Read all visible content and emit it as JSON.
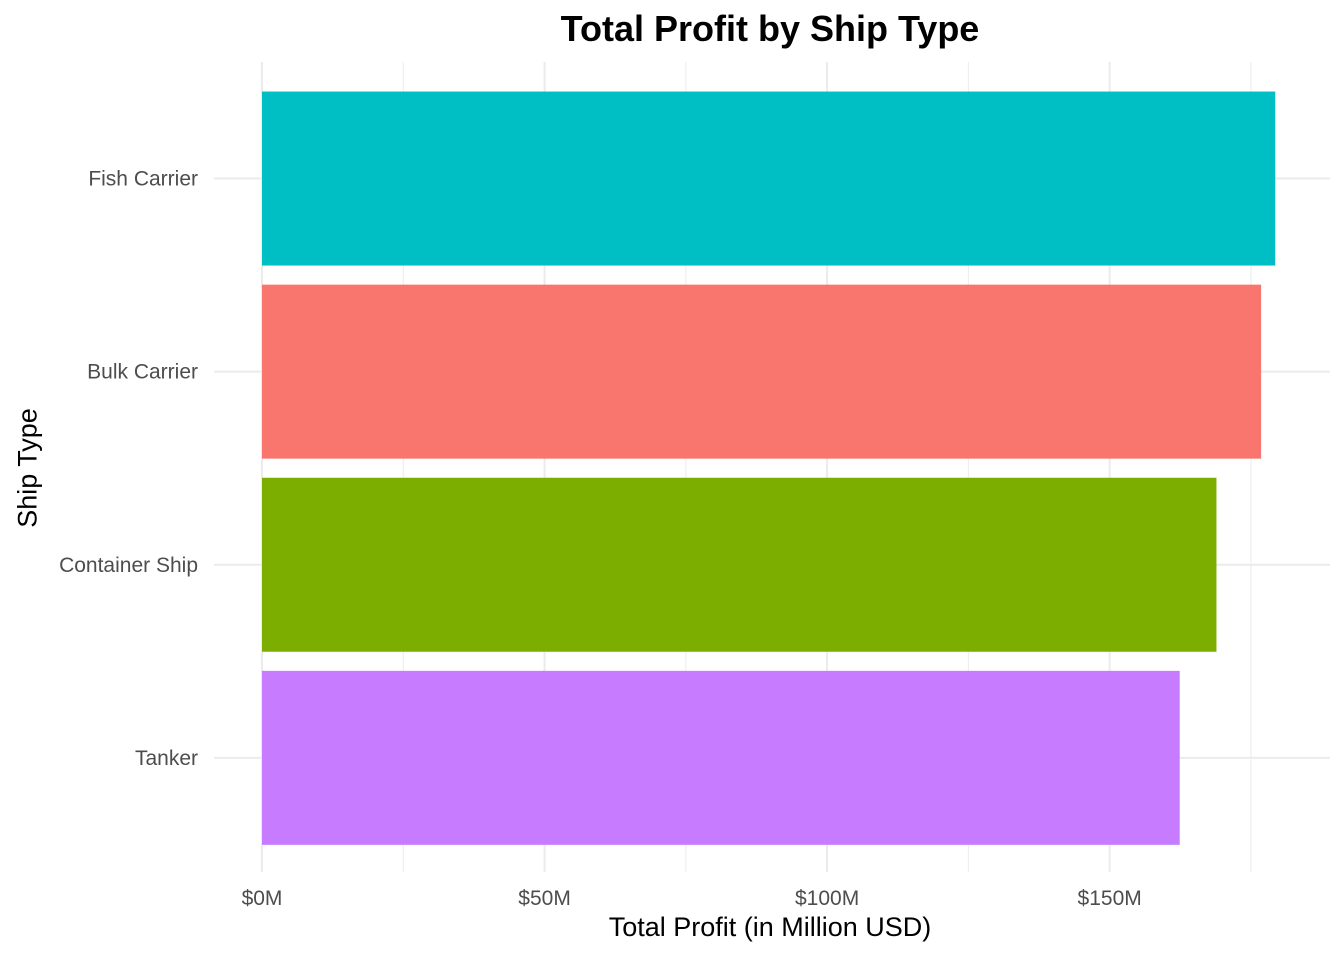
{
  "chart_data": {
    "type": "bar",
    "orientation": "horizontal",
    "title": "Total Profit by Ship Type",
    "xlabel": "Total Profit (in Million USD)",
    "ylabel": "Ship Type",
    "categories": [
      "Fish Carrier",
      "Bulk Carrier",
      "Container Ship",
      "Tanker"
    ],
    "values": [
      179.3,
      176.8,
      168.9,
      162.4
    ],
    "colors": [
      "#00BFC4",
      "#F8766D",
      "#7CAE00",
      "#C77CFF"
    ],
    "xlim": [
      0,
      180
    ],
    "xticks": [
      0,
      50,
      100,
      150
    ],
    "xtick_labels": [
      "$0M",
      "$50M",
      "$100M",
      "$150M"
    ],
    "grid": true,
    "legend": "none"
  }
}
